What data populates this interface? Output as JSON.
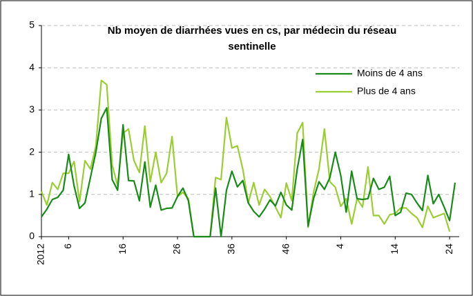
{
  "chart_data": {
    "type": "line",
    "title": "Nb moyen de diarrhées vues en cs, par médecin du réseau sentinelle",
    "categories": [
      "2012",
      null,
      null,
      null,
      null,
      "6",
      null,
      null,
      null,
      null,
      null,
      null,
      null,
      null,
      null,
      "16",
      null,
      null,
      null,
      null,
      null,
      null,
      null,
      null,
      null,
      "26",
      null,
      null,
      null,
      null,
      null,
      null,
      null,
      null,
      null,
      "36",
      null,
      null,
      null,
      null,
      null,
      null,
      null,
      null,
      null,
      "46",
      null,
      null,
      null,
      null,
      null,
      null,
      null,
      null,
      null,
      "4",
      null,
      null,
      null,
      null,
      null,
      null,
      null,
      null,
      null,
      "14",
      null,
      null,
      null,
      null,
      null,
      null,
      null,
      null,
      null,
      "24",
      null
    ],
    "series": [
      {
        "name": "Moins de 4 ans",
        "color": "#178a17",
        "values": [
          0.47,
          0.65,
          0.88,
          0.93,
          1.1,
          1.95,
          1.2,
          0.67,
          0.8,
          1.4,
          2.0,
          2.8,
          3.05,
          1.35,
          1.1,
          2.65,
          1.33,
          1.32,
          0.85,
          1.77,
          0.7,
          1.22,
          0.63,
          0.67,
          0.68,
          0.95,
          1.15,
          0.85,
          0,
          0,
          0,
          0,
          1.15,
          0,
          1.1,
          1.55,
          1.18,
          1.33,
          0.8,
          0.6,
          0.47,
          0.65,
          0.87,
          0.73,
          1.05,
          0.75,
          0.63,
          1.6,
          2.3,
          0.25,
          0.9,
          1.3,
          1.12,
          1.4,
          2.0,
          1.45,
          0.58,
          1.55,
          0.9,
          0.88,
          0.9,
          1.38,
          1.12,
          1.17,
          1.43,
          0.5,
          0.58,
          1.03,
          1.0,
          0.8,
          0.62,
          1.45,
          0.78,
          1.0,
          0.7,
          0.38,
          1.28
        ]
      },
      {
        "name": "Plus de 4 ans",
        "color": "#9acd32",
        "values": [
          1.07,
          0.75,
          1.28,
          1.12,
          1.5,
          1.5,
          1.78,
          0.83,
          1.8,
          1.6,
          2.15,
          3.7,
          3.6,
          1.7,
          1.2,
          2.45,
          2.55,
          1.8,
          1.52,
          2.62,
          1.3,
          2.0,
          1.28,
          1.5,
          2.37,
          0.95,
          1.05,
          0.9,
          0,
          0,
          0,
          0,
          1.4,
          1.35,
          2.82,
          2.1,
          2.15,
          1.6,
          0.8,
          1.28,
          0.75,
          1.12,
          0.95,
          0.7,
          0.45,
          1.27,
          0.85,
          2.45,
          2.7,
          0.22,
          1.05,
          1.6,
          2.55,
          1.3,
          1.17,
          0.72,
          0.9,
          0.3,
          0.9,
          0.7,
          1.65,
          0.5,
          0.5,
          0.3,
          0.52,
          0.55,
          0.68,
          0.68,
          0.55,
          0.45,
          0.22,
          0.72,
          0.45,
          0.5,
          0.55,
          0.12,
          null
        ]
      }
    ],
    "ylim": [
      0,
      5
    ],
    "yticks": [
      0,
      1,
      2,
      3,
      4,
      5
    ],
    "grid": true,
    "legend": "top-right"
  }
}
